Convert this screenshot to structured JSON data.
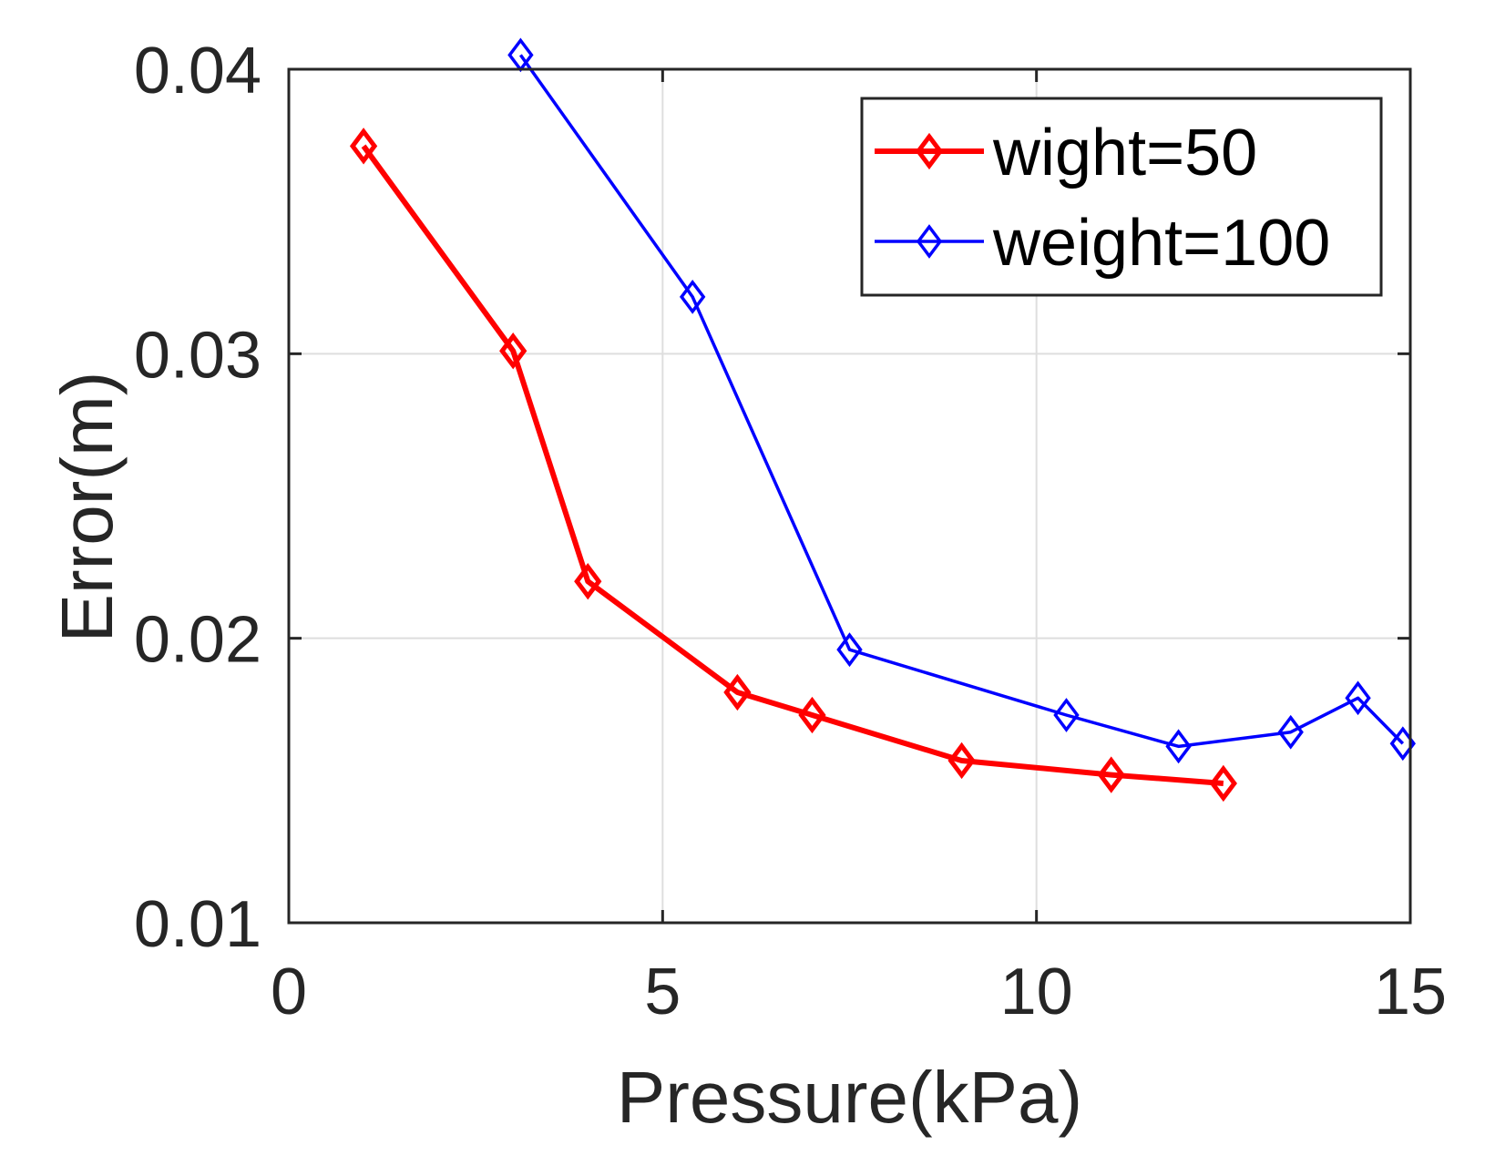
{
  "chart_data": {
    "type": "line",
    "title": "",
    "xlabel": "Pressure(kPa)",
    "ylabel": "Error(m)",
    "xlim": [
      0,
      15
    ],
    "ylim": [
      0.01,
      0.04
    ],
    "xticks": [
      0,
      5,
      10,
      15
    ],
    "xtick_labels": [
      "0",
      "5",
      "10",
      "15"
    ],
    "yticks": [
      0.01,
      0.02,
      0.03,
      0.04
    ],
    "ytick_labels": [
      "0.01",
      "0.02",
      "0.03",
      "0.04"
    ],
    "grid": true,
    "legend_position": "top-right",
    "series": [
      {
        "name": "wight=50",
        "color": "#ff0000",
        "marker": "diamond",
        "line_weight": "thick",
        "x": [
          1,
          3,
          4,
          6,
          7,
          9,
          11,
          12.5
        ],
        "y": [
          0.0373,
          0.0301,
          0.022,
          0.0181,
          0.0173,
          0.0157,
          0.0152,
          0.0149
        ]
      },
      {
        "name": "weight=100",
        "color": "#0000ff",
        "marker": "diamond",
        "line_weight": "thin",
        "x": [
          3.1,
          5.4,
          7.5,
          10.4,
          11.9,
          13.4,
          14.3,
          14.9
        ],
        "y": [
          0.0405,
          0.032,
          0.0196,
          0.0173,
          0.0162,
          0.0167,
          0.0179,
          0.0163
        ]
      }
    ]
  }
}
